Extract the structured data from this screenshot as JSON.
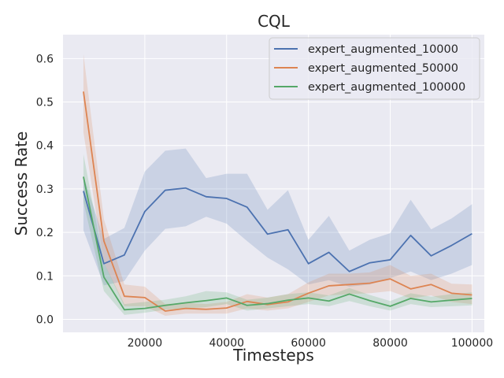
{
  "chart_data": {
    "type": "line",
    "title": "CQL",
    "xlabel": "Timesteps",
    "ylabel": "Success Rate",
    "xlim": [
      0,
      103000
    ],
    "ylim": [
      -0.03,
      0.655
    ],
    "xticks": [
      20000,
      40000,
      60000,
      80000,
      100000
    ],
    "xtick_labels": [
      "20000",
      "40000",
      "60000",
      "80000",
      "100000"
    ],
    "yticks": [
      0.0,
      0.1,
      0.2,
      0.3,
      0.4,
      0.5,
      0.6
    ],
    "ytick_labels": [
      "0.0",
      "0.1",
      "0.2",
      "0.3",
      "0.4",
      "0.5",
      "0.6"
    ],
    "grid": true,
    "legend_position": "upper-right",
    "x": [
      5000,
      10000,
      15000,
      20000,
      25000,
      30000,
      35000,
      40000,
      45000,
      50000,
      55000,
      60000,
      65000,
      70000,
      75000,
      80000,
      85000,
      90000,
      95000,
      100000
    ],
    "series": [
      {
        "name": "expert_augmented_10000",
        "color": "#4c72b0",
        "values": [
          0.295,
          0.128,
          0.148,
          0.248,
          0.297,
          0.302,
          0.282,
          0.278,
          0.258,
          0.196,
          0.206,
          0.128,
          0.154,
          0.11,
          0.13,
          0.137,
          0.193,
          0.146,
          0.17,
          0.197
        ],
        "lower": [
          0.205,
          0.078,
          0.088,
          0.158,
          0.208,
          0.214,
          0.236,
          0.22,
          0.18,
          0.142,
          0.115,
          0.08,
          0.09,
          0.075,
          0.08,
          0.095,
          0.11,
          0.09,
          0.105,
          0.125
        ],
        "upper": [
          0.33,
          0.185,
          0.21,
          0.34,
          0.388,
          0.393,
          0.325,
          0.335,
          0.335,
          0.252,
          0.297,
          0.183,
          0.238,
          0.158,
          0.183,
          0.198,
          0.275,
          0.207,
          0.232,
          0.265
        ]
      },
      {
        "name": "expert_augmented_50000",
        "color": "#dd8452",
        "values": [
          0.524,
          0.18,
          0.053,
          0.05,
          0.019,
          0.025,
          0.023,
          0.026,
          0.041,
          0.034,
          0.04,
          0.06,
          0.077,
          0.08,
          0.083,
          0.093,
          0.07,
          0.08,
          0.06,
          0.056
        ],
        "lower": [
          0.43,
          0.13,
          0.03,
          0.03,
          0.008,
          0.013,
          0.013,
          0.013,
          0.025,
          0.02,
          0.025,
          0.04,
          0.055,
          0.058,
          0.06,
          0.065,
          0.048,
          0.055,
          0.04,
          0.035
        ],
        "upper": [
          0.61,
          0.23,
          0.08,
          0.075,
          0.035,
          0.038,
          0.035,
          0.04,
          0.058,
          0.05,
          0.058,
          0.085,
          0.105,
          0.105,
          0.108,
          0.125,
          0.1,
          0.105,
          0.082,
          0.08
        ]
      },
      {
        "name": "expert_augmented_100000",
        "color": "#55a868",
        "values": [
          0.328,
          0.097,
          0.022,
          0.025,
          0.032,
          0.038,
          0.043,
          0.049,
          0.032,
          0.036,
          0.044,
          0.049,
          0.042,
          0.058,
          0.043,
          0.03,
          0.048,
          0.04,
          0.044,
          0.048
        ],
        "lower": [
          0.27,
          0.065,
          0.01,
          0.015,
          0.022,
          0.025,
          0.028,
          0.035,
          0.02,
          0.025,
          0.03,
          0.035,
          0.03,
          0.042,
          0.03,
          0.02,
          0.035,
          0.028,
          0.03,
          0.032
        ],
        "upper": [
          0.38,
          0.13,
          0.035,
          0.04,
          0.045,
          0.053,
          0.065,
          0.062,
          0.045,
          0.05,
          0.058,
          0.062,
          0.055,
          0.072,
          0.056,
          0.042,
          0.06,
          0.052,
          0.058,
          0.062
        ]
      }
    ]
  }
}
